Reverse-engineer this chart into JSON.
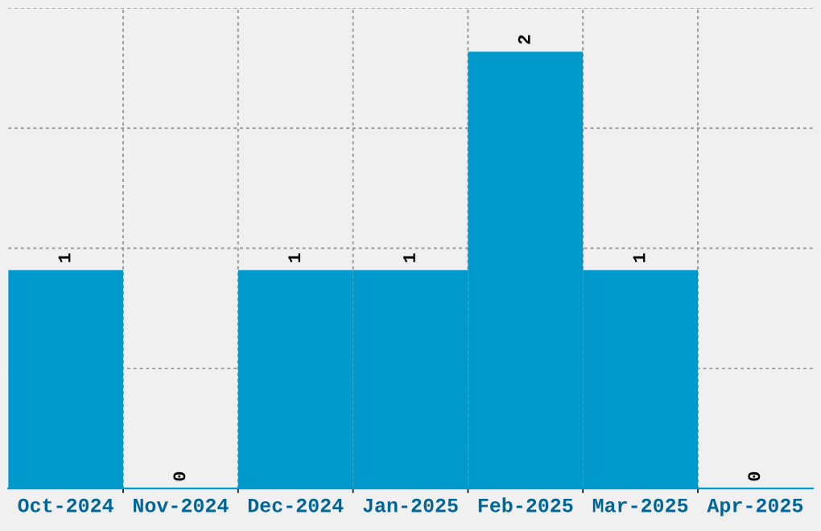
{
  "chart_data": {
    "type": "bar",
    "categories": [
      "Oct-2024",
      "Nov-2024",
      "Dec-2024",
      "Jan-2025",
      "Feb-2025",
      "Mar-2025",
      "Apr-2025"
    ],
    "values": [
      1,
      0,
      1,
      1,
      2,
      1,
      0
    ],
    "color": "#0099cc",
    "data_labels": true,
    "ylim": [
      0,
      2.2
    ],
    "yticks": [
      {
        "value": 0,
        "label": null
      },
      {
        "value": 0.55,
        "label": null
      },
      {
        "value": 1.1,
        "label": null
      },
      {
        "value": 1.65,
        "label": null
      },
      {
        "value": 2.2,
        "label": null
      }
    ],
    "tick_labels": "x",
    "grid": true,
    "legend": false
  }
}
